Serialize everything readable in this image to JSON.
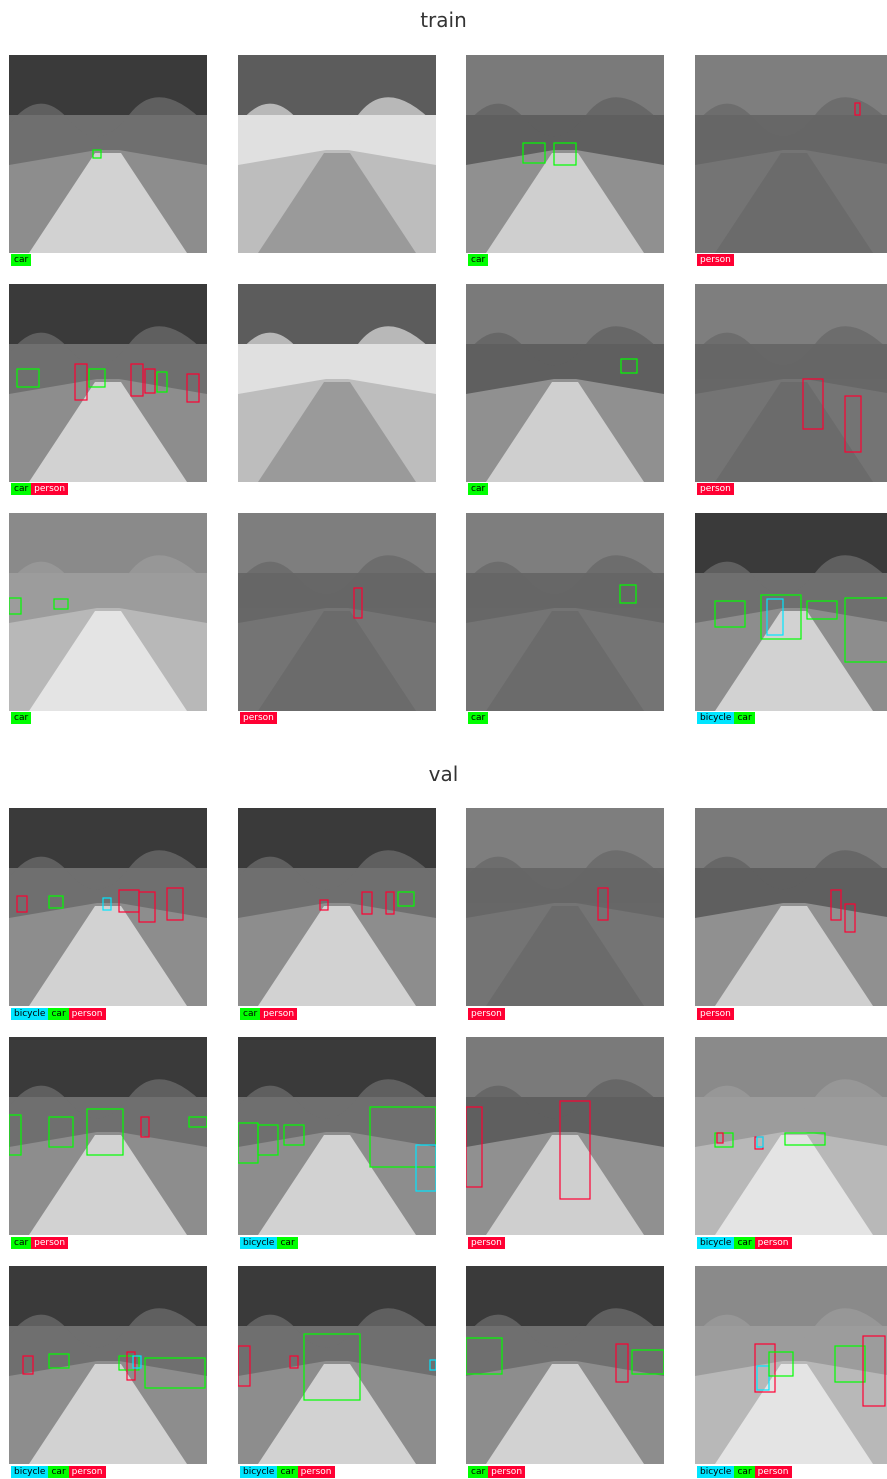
{
  "sections": [
    {
      "title": "train"
    },
    {
      "title": "val"
    }
  ],
  "colors": {
    "car": "#00ff00",
    "person": "#ff0033",
    "bicycle": "#00e5ff"
  },
  "tiles": [
    {
      "tone": "dark",
      "labels": [
        "car"
      ]
    },
    {
      "tone": "bright",
      "labels": []
    },
    {
      "tone": "mid",
      "labels": [
        "car"
      ]
    },
    {
      "tone": "flat",
      "labels": [
        "person"
      ]
    },
    {
      "tone": "dark",
      "labels": [
        "car",
        "person"
      ]
    },
    {
      "tone": "bright",
      "labels": []
    },
    {
      "tone": "mid",
      "labels": [
        "car"
      ]
    },
    {
      "tone": "flat",
      "labels": [
        "person"
      ]
    },
    {
      "tone": "light",
      "labels": [
        "car"
      ]
    },
    {
      "tone": "flat",
      "labels": [
        "person"
      ]
    },
    {
      "tone": "flat",
      "labels": [
        "car"
      ]
    },
    {
      "tone": "dark",
      "labels": [
        "bicycle",
        "car"
      ]
    },
    {
      "tone": "dark",
      "labels": [
        "bicycle",
        "car",
        "person"
      ]
    },
    {
      "tone": "dark",
      "labels": [
        "car",
        "person"
      ]
    },
    {
      "tone": "flat",
      "labels": [
        "person"
      ]
    },
    {
      "tone": "mid",
      "labels": [
        "person"
      ]
    },
    {
      "tone": "dark",
      "labels": [
        "car",
        "person"
      ]
    },
    {
      "tone": "dark",
      "labels": [
        "bicycle",
        "car"
      ]
    },
    {
      "tone": "mid",
      "labels": [
        "person"
      ]
    },
    {
      "tone": "light",
      "labels": [
        "bicycle",
        "car",
        "person"
      ]
    },
    {
      "tone": "dark",
      "labels": [
        "bicycle",
        "car",
        "person"
      ]
    },
    {
      "tone": "dark",
      "labels": [
        "bicycle",
        "car",
        "person"
      ]
    },
    {
      "tone": "dark",
      "labels": [
        "car",
        "person"
      ]
    },
    {
      "tone": "light",
      "labels": [
        "bicycle",
        "car",
        "person"
      ]
    }
  ]
}
